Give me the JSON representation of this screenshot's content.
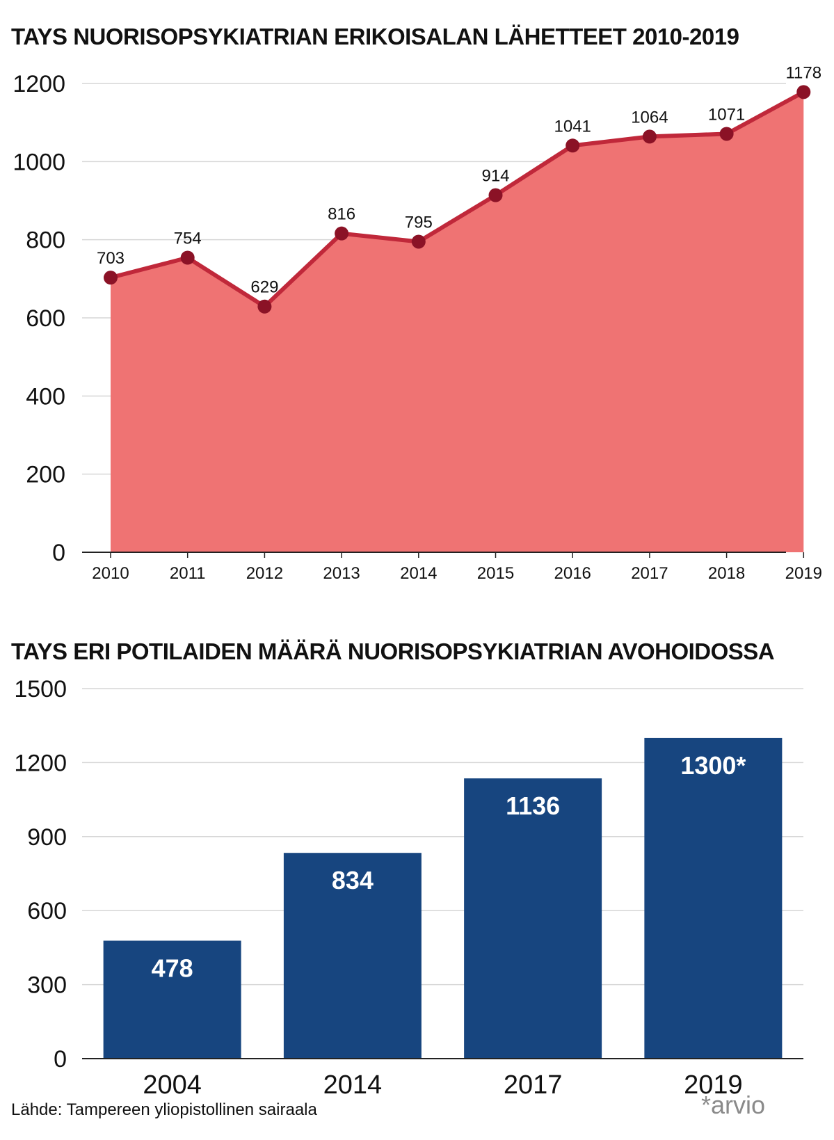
{
  "chart_data": [
    {
      "type": "area",
      "title": "TAYS NUORISOPSYKIATRIAN ERIKOISALAN LÄHETTEET 2010-2019",
      "categories": [
        "2010",
        "2011",
        "2012",
        "2013",
        "2014",
        "2015",
        "2016",
        "2017",
        "2018",
        "2019"
      ],
      "values": [
        703,
        754,
        629,
        816,
        795,
        914,
        1041,
        1064,
        1071,
        1178
      ],
      "data_labels": [
        "703",
        "754",
        "629",
        "816",
        "795",
        "914",
        "1041",
        "1064",
        "1071",
        "1178"
      ],
      "yticks": [
        "0",
        "200",
        "400",
        "600",
        "800",
        "1000",
        "1200"
      ],
      "ylim": [
        0,
        1200
      ],
      "grid": true,
      "colors": {
        "fill": "#ef7373",
        "line": "#c0283a",
        "marker": "#8b1226"
      }
    },
    {
      "type": "bar",
      "title": "TAYS ERI POTILAIDEN MÄÄRÄ NUORISOPSYKIATRIAN AVOHOIDOSSA",
      "categories": [
        "2004",
        "2014",
        "2017",
        "2019"
      ],
      "values": [
        478,
        834,
        1136,
        1300
      ],
      "data_labels": [
        "478",
        "834",
        "1136",
        "1300*"
      ],
      "yticks": [
        "0",
        "300",
        "600",
        "900",
        "1200",
        "1500"
      ],
      "ylim": [
        0,
        1500
      ],
      "grid": true,
      "colors": {
        "bar": "#17457f",
        "label": "#ffffff"
      }
    }
  ],
  "footer": {
    "source": "Lähde: Tampereen yliopistollinen sairaala",
    "note": "*arvio"
  }
}
